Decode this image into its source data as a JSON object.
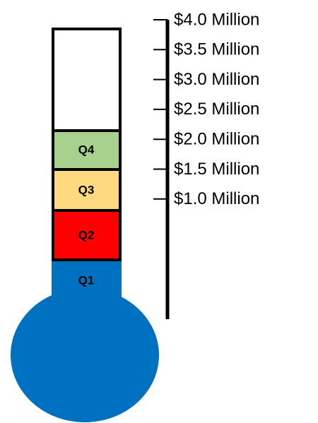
{
  "axis": {
    "labels": [
      "$4.0 Million",
      "$3.5 Million",
      "$3.0 Million",
      "$2.5 Million",
      "$2.0 Million",
      "$1.5 Million",
      "$1.0 Million"
    ]
  },
  "segments": [
    {
      "label": "Q4"
    },
    {
      "label": "Q3"
    },
    {
      "label": "Q2"
    },
    {
      "label": "Q1"
    }
  ]
}
